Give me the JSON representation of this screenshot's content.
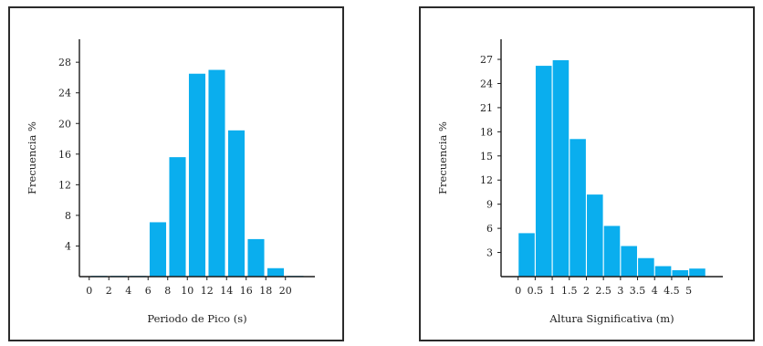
{
  "colors": {
    "bar": "#0aaeee",
    "axis": "#1a1a1a",
    "frame": "#2b2b2b"
  },
  "chart_data": [
    {
      "type": "bar",
      "title": "",
      "xlabel": "Periodo de Pico (s)",
      "ylabel": "Frecuencia %",
      "xlim": [
        -1,
        23
      ],
      "ylim": [
        0,
        31
      ],
      "x_ticks": [
        0,
        2,
        4,
        6,
        8,
        10,
        12,
        14,
        16,
        18,
        20
      ],
      "x_tick_labels": [
        "0",
        "2",
        "4",
        "6",
        "8",
        "10",
        "12",
        "14",
        "16",
        "18",
        "20"
      ],
      "y_ticks": [
        4,
        8,
        12,
        16,
        20,
        24,
        28
      ],
      "y_tick_labels": [
        "4",
        "8",
        "12",
        "16",
        "20",
        "24",
        "28"
      ],
      "bar_edges": [
        0,
        2,
        4,
        6,
        8,
        10,
        12,
        14,
        16,
        18,
        20,
        22
      ],
      "values": [
        0.1,
        0.1,
        0.1,
        7.1,
        15.6,
        26.5,
        27.0,
        19.1,
        4.9,
        1.1,
        0.1
      ],
      "grid": false,
      "legend": "none"
    },
    {
      "type": "bar",
      "title": "",
      "xlabel": "Altura Significativa (m)",
      "ylabel": "Frecuencia %",
      "xlim": [
        -0.5,
        6.0
      ],
      "ylim": [
        0,
        29.5
      ],
      "x_ticks": [
        0,
        0.5,
        1,
        1.5,
        2,
        2.5,
        3,
        3.5,
        4,
        4.5,
        5
      ],
      "x_tick_labels": [
        "0",
        "0.5",
        "1",
        "1.5",
        "2",
        "2.5",
        "3",
        "3.5",
        "4",
        "4.5",
        "5"
      ],
      "y_ticks": [
        3,
        6,
        9,
        12,
        15,
        18,
        21,
        24,
        27
      ],
      "y_tick_labels": [
        "3",
        "6",
        "9",
        "12",
        "15",
        "18",
        "21",
        "24",
        "27"
      ],
      "bar_edges": [
        0,
        0.5,
        1,
        1.5,
        2,
        2.5,
        3,
        3.5,
        4,
        4.5,
        5,
        5.5
      ],
      "values": [
        5.4,
        26.2,
        26.9,
        17.1,
        10.2,
        6.3,
        3.8,
        2.3,
        1.3,
        0.8,
        1.0
      ],
      "grid": false,
      "legend": "none"
    }
  ]
}
